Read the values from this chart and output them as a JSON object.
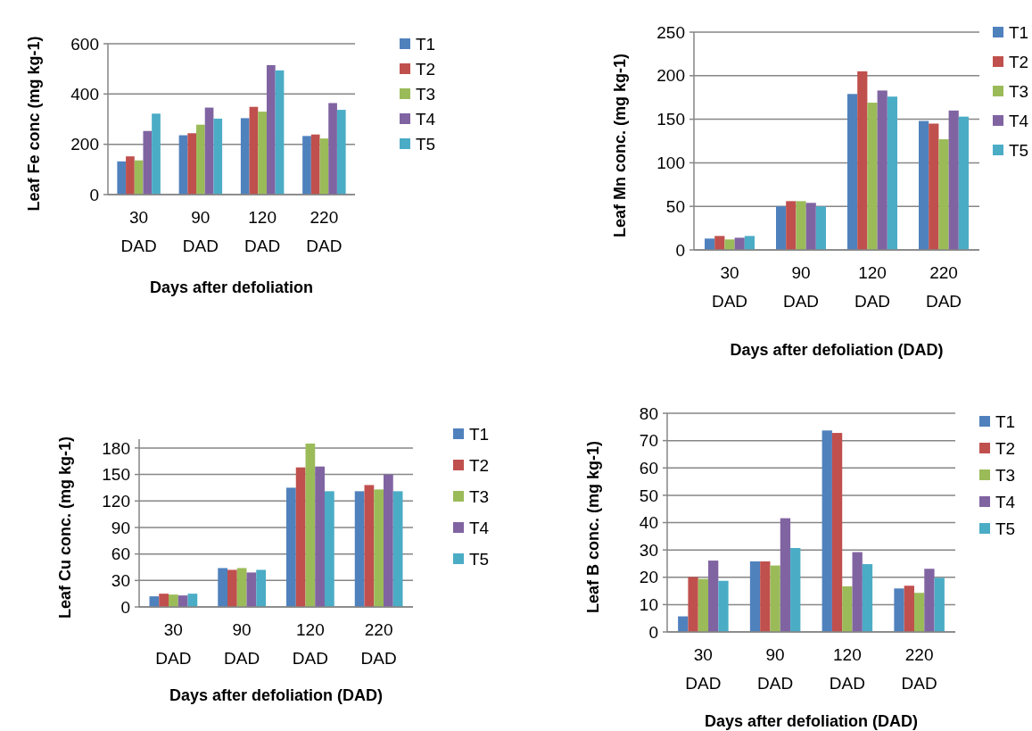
{
  "chart_data": [
    {
      "type": "bar",
      "ylabel": "Leaf Fe conc (mg kg-1)",
      "xlabel": "Days after defoliation",
      "categories": [
        "30 DAD",
        "90 DAD",
        "120 DAD",
        "220 DAD"
      ],
      "ylim": [
        0,
        600
      ],
      "yticks": [
        0,
        200,
        400,
        600
      ],
      "grid": "y",
      "legend": "right",
      "series": [
        {
          "name": "T1",
          "color": "#4f81bd",
          "values": [
            132,
            236,
            304,
            233
          ]
        },
        {
          "name": "T2",
          "color": "#c0504d",
          "values": [
            152,
            244,
            349,
            239
          ]
        },
        {
          "name": "T3",
          "color": "#9bbb59",
          "values": [
            136,
            278,
            330,
            223
          ]
        },
        {
          "name": "T4",
          "color": "#8064a2",
          "values": [
            253,
            346,
            515,
            364
          ]
        },
        {
          "name": "T5",
          "color": "#4bacc6",
          "values": [
            322,
            302,
            494,
            337
          ]
        }
      ]
    },
    {
      "type": "bar",
      "ylabel": "Leaf Mn conc. (mg kg-1)",
      "xlabel": "Days after defoliation (DAD)",
      "categories": [
        "30 DAD",
        "90 DAD",
        "120 DAD",
        "220 DAD"
      ],
      "ylim": [
        0,
        250
      ],
      "yticks": [
        0,
        50,
        100,
        150,
        200,
        250
      ],
      "grid": "y",
      "legend": "right",
      "series": [
        {
          "name": "T1",
          "color": "#4f81bd",
          "values": [
            13,
            50,
            179,
            148
          ]
        },
        {
          "name": "T2",
          "color": "#c0504d",
          "values": [
            16,
            56,
            205,
            145
          ]
        },
        {
          "name": "T3",
          "color": "#9bbb59",
          "values": [
            12,
            56,
            169,
            127
          ]
        },
        {
          "name": "T4",
          "color": "#8064a2",
          "values": [
            14,
            54,
            183,
            160
          ]
        },
        {
          "name": "T5",
          "color": "#4bacc6",
          "values": [
            16,
            50,
            176,
            153
          ]
        }
      ]
    },
    {
      "type": "bar",
      "ylabel": "Leaf Cu conc. (mg kg-1)",
      "xlabel": "Days after defoliation (DAD)",
      "categories": [
        "30 DAD",
        "90 DAD",
        "120 DAD",
        "220 DAD"
      ],
      "ylim": [
        0,
        190
      ],
      "yticks": [
        0,
        30,
        60,
        90,
        120,
        150,
        180
      ],
      "grid": "y",
      "legend": "right",
      "series": [
        {
          "name": "T1",
          "color": "#4f81bd",
          "values": [
            12,
            44,
            135,
            131
          ]
        },
        {
          "name": "T2",
          "color": "#c0504d",
          "values": [
            15,
            42,
            158,
            138
          ]
        },
        {
          "name": "T3",
          "color": "#9bbb59",
          "values": [
            14,
            44,
            185,
            133
          ]
        },
        {
          "name": "T4",
          "color": "#8064a2",
          "values": [
            13,
            39,
            159,
            150
          ]
        },
        {
          "name": "T5",
          "color": "#4bacc6",
          "values": [
            15,
            42,
            131,
            131
          ]
        }
      ]
    },
    {
      "type": "bar",
      "ylabel": "Leaf B conc. (mg kg-1)",
      "xlabel": "Days after defoliation (DAD)",
      "categories": [
        "30 DAD",
        "90 DAD",
        "120 DAD",
        "220 DAD"
      ],
      "ylim": [
        0,
        80
      ],
      "yticks": [
        0,
        10,
        20,
        30,
        40,
        50,
        60,
        70,
        80
      ],
      "grid": "y",
      "legend": "right",
      "series": [
        {
          "name": "T1",
          "color": "#4f81bd",
          "values": [
            5.7,
            25.8,
            73.7,
            15.9
          ]
        },
        {
          "name": "T2",
          "color": "#c0504d",
          "values": [
            20.1,
            25.8,
            72.8,
            16.9
          ]
        },
        {
          "name": "T3",
          "color": "#9bbb59",
          "values": [
            19.4,
            24.3,
            16.7,
            14.3
          ]
        },
        {
          "name": "T4",
          "color": "#8064a2",
          "values": [
            26.1,
            41.6,
            29.2,
            23.1
          ]
        },
        {
          "name": "T5",
          "color": "#4bacc6",
          "values": [
            18.7,
            30.7,
            24.8,
            19.8
          ]
        }
      ]
    }
  ]
}
